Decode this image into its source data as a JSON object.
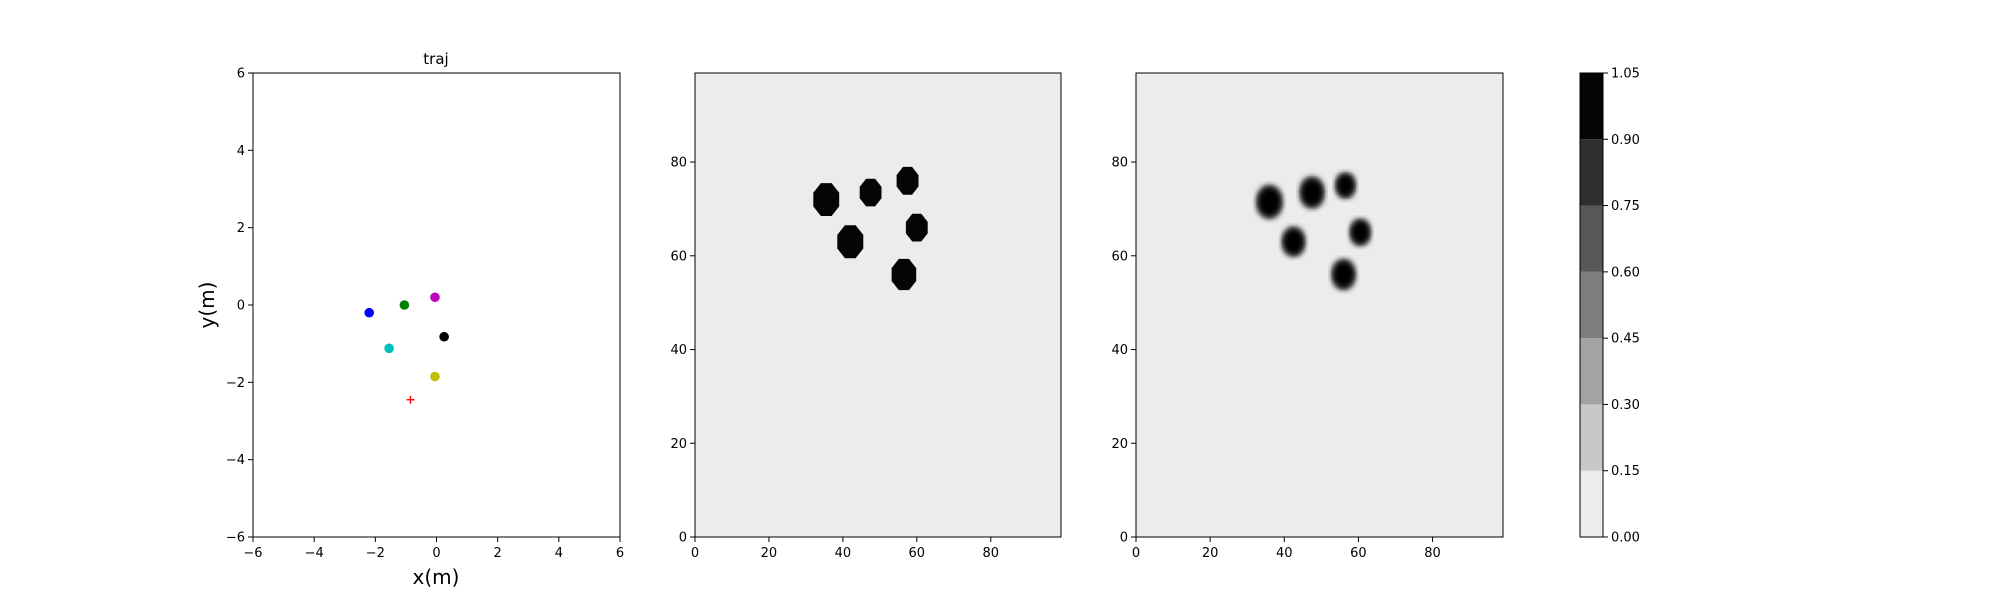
{
  "chart_data": [
    {
      "type": "scatter",
      "title": "traj",
      "xlabel": "x(m)",
      "ylabel": "y(m)",
      "xlim": [
        -6,
        6
      ],
      "ylim": [
        -6,
        6
      ],
      "xticks": [
        -6,
        -4,
        -2,
        0,
        2,
        4,
        6
      ],
      "yticks": [
        -6,
        -4,
        -2,
        0,
        2,
        4,
        6
      ],
      "grid": false,
      "points": [
        {
          "x": -2.2,
          "y": -0.2,
          "color": "#0000ff",
          "marker": "circle"
        },
        {
          "x": -1.05,
          "y": 0.0,
          "color": "#008000",
          "marker": "circle"
        },
        {
          "x": -0.05,
          "y": 0.2,
          "color": "#bf00bf",
          "marker": "circle"
        },
        {
          "x": 0.25,
          "y": -0.82,
          "color": "#000000",
          "marker": "circle"
        },
        {
          "x": -1.55,
          "y": -1.12,
          "color": "#00bfbf",
          "marker": "circle"
        },
        {
          "x": -0.05,
          "y": -1.85,
          "color": "#bfbf00",
          "marker": "circle"
        },
        {
          "x": -0.85,
          "y": -2.45,
          "color": "#ff0000",
          "marker": "plus"
        }
      ]
    },
    {
      "type": "heatmap",
      "xlim": [
        0,
        99
      ],
      "ylim": [
        0,
        99
      ],
      "xticks": [
        0,
        20,
        40,
        60,
        80
      ],
      "yticks": [
        0,
        20,
        40,
        60,
        80
      ],
      "background_value": 0.05,
      "blob_value": 1.0,
      "blob_edge": "sharp",
      "blobs": [
        {
          "x": 35.5,
          "y": 72,
          "r": 3.8
        },
        {
          "x": 47.5,
          "y": 73.5,
          "r": 3.2
        },
        {
          "x": 57.5,
          "y": 76,
          "r": 3.2
        },
        {
          "x": 42,
          "y": 63,
          "r": 3.8
        },
        {
          "x": 60,
          "y": 66,
          "r": 3.2
        },
        {
          "x": 56.5,
          "y": 56,
          "r": 3.6
        }
      ]
    },
    {
      "type": "heatmap",
      "xlim": [
        0,
        99
      ],
      "ylim": [
        0,
        99
      ],
      "xticks": [
        0,
        20,
        40,
        60,
        80
      ],
      "yticks": [
        0,
        20,
        40,
        60,
        80
      ],
      "background_value": 0.05,
      "blob_value": 1.0,
      "blob_edge": "soft",
      "blobs": [
        {
          "x": 36,
          "y": 71.5,
          "r": 3.6
        },
        {
          "x": 47.5,
          "y": 73.5,
          "r": 3.4
        },
        {
          "x": 56.5,
          "y": 75,
          "r": 2.8
        },
        {
          "x": 42.5,
          "y": 63,
          "r": 3.2
        },
        {
          "x": 60.5,
          "y": 65,
          "r": 2.9
        },
        {
          "x": 56,
          "y": 56,
          "r": 3.3
        }
      ]
    }
  ],
  "colorbar": {
    "levels": [
      0.0,
      0.15,
      0.3,
      0.45,
      0.6,
      0.75,
      0.9,
      1.05
    ],
    "tick_labels": [
      "0.00",
      "0.15",
      "0.30",
      "0.45",
      "0.60",
      "0.75",
      "0.90",
      "1.05"
    ],
    "colors": [
      "#ececec",
      "#c8c8c8",
      "#a3a3a3",
      "#7d7d7d",
      "#575757",
      "#2f2f2f",
      "#050505"
    ]
  }
}
